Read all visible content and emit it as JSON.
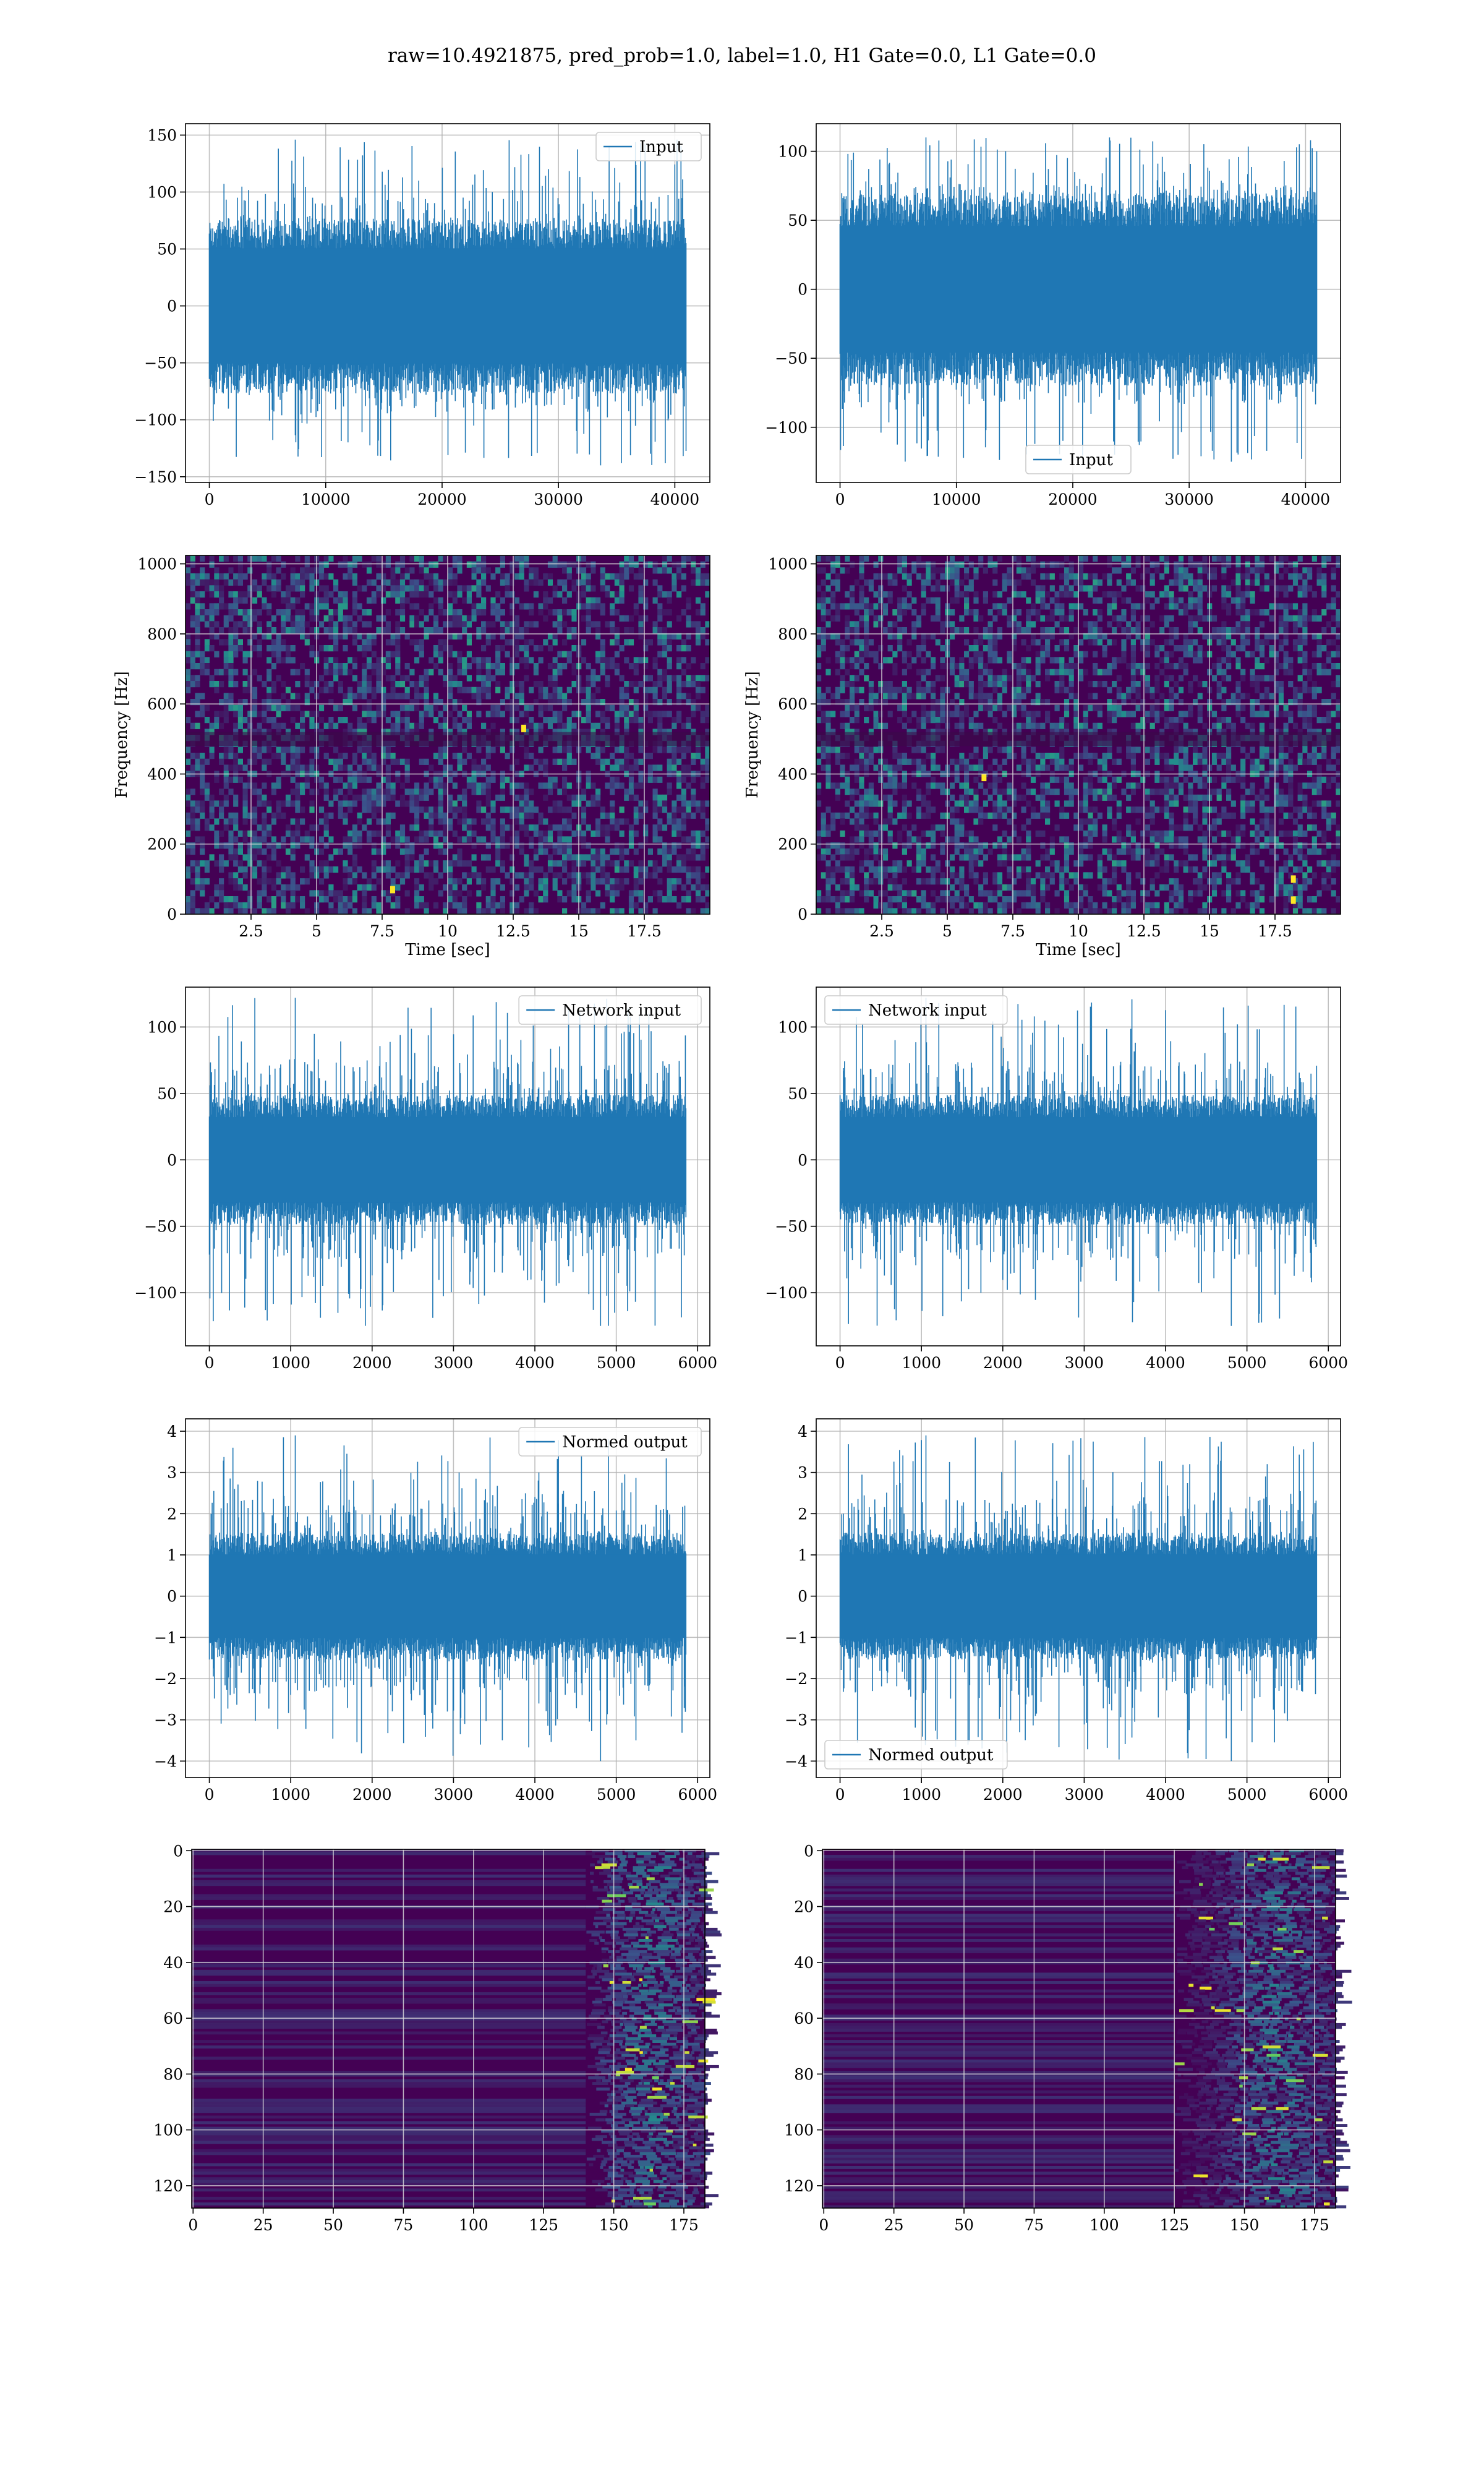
{
  "figure": {
    "suptitle": "raw=10.4921875, pred_prob=1.0, label=1.0, H1 Gate=0.0, L1 Gate=0.0"
  },
  "colors": {
    "series": "#1f77b4",
    "grid": "#b0b0b0",
    "spectrogram_background": "#440154",
    "spectrogram_mid": "#3b528b",
    "spectrogram_high": "#21918c",
    "spectrogram_peak": "#5ec962",
    "spectrogram_max": "#fde725"
  },
  "chart_data": [
    {
      "id": "input-h1",
      "type": "line",
      "legend": "Input",
      "legend_loc": "upper right",
      "xlim": [
        -2048,
        43008
      ],
      "ylim": [
        -155,
        160
      ],
      "xticks": [
        0,
        10000,
        20000,
        30000,
        40000
      ],
      "yticks": [
        -150,
        -100,
        -50,
        0,
        50,
        100,
        150
      ],
      "x_range": [
        0,
        40960
      ],
      "band": [
        -55,
        55
      ],
      "spike_max": 146,
      "spike_min": -140,
      "seed": 11
    },
    {
      "id": "input-l1",
      "type": "line",
      "legend": "Input",
      "legend_loc": "lower center",
      "xlim": [
        -2048,
        43008
      ],
      "ylim": [
        -140,
        120
      ],
      "xticks": [
        0,
        10000,
        20000,
        30000,
        40000
      ],
      "yticks": [
        -100,
        -50,
        0,
        50,
        100
      ],
      "x_range": [
        0,
        40960
      ],
      "band": [
        -50,
        50
      ],
      "spike_max": 110,
      "spike_min": -125,
      "seed": 23
    },
    {
      "id": "spectrogram-h1",
      "type": "heatmap",
      "xlabel": "Time [sec]",
      "ylabel": "Frequency [Hz]",
      "xlim": [
        0.0,
        20.0
      ],
      "ylim": [
        0,
        1024
      ],
      "xticks": [
        2.5,
        5.0,
        7.5,
        10.0,
        12.5,
        15.0,
        17.5
      ],
      "yticks": [
        0,
        200,
        400,
        600,
        800,
        1000
      ],
      "hot_spots": [
        [
          7.9,
          70
        ],
        [
          12.9,
          530
        ]
      ],
      "seed": 37
    },
    {
      "id": "spectrogram-l1",
      "type": "heatmap",
      "xlabel": "Time [sec]",
      "ylabel": "Frequency [Hz]",
      "xlim": [
        0.0,
        20.0
      ],
      "ylim": [
        0,
        1024
      ],
      "xticks": [
        2.5,
        5.0,
        7.5,
        10.0,
        12.5,
        15.0,
        17.5
      ],
      "yticks": [
        0,
        200,
        400,
        600,
        800,
        1000
      ],
      "hot_spots": [
        [
          18.2,
          40
        ],
        [
          18.2,
          100
        ],
        [
          6.4,
          390
        ]
      ],
      "seed": 41
    },
    {
      "id": "network-input-h1",
      "type": "line",
      "legend": "Network input",
      "legend_loc": "upper right",
      "xlim": [
        -293,
        6150
      ],
      "ylim": [
        -140,
        130
      ],
      "xticks": [
        0,
        1000,
        2000,
        3000,
        4000,
        5000,
        6000
      ],
      "yticks": [
        -100,
        -50,
        0,
        50,
        100
      ],
      "x_range": [
        0,
        5856
      ],
      "band": [
        -35,
        35
      ],
      "spike_max": 122,
      "spike_min": -125,
      "seed": 53
    },
    {
      "id": "network-input-l1",
      "type": "line",
      "legend": "Network input",
      "legend_loc": "upper left",
      "xlim": [
        -293,
        6150
      ],
      "ylim": [
        -140,
        130
      ],
      "xticks": [
        0,
        1000,
        2000,
        3000,
        4000,
        5000,
        6000
      ],
      "yticks": [
        -100,
        -50,
        0,
        50,
        100
      ],
      "x_range": [
        0,
        5856
      ],
      "band": [
        -35,
        35
      ],
      "spike_max": 122,
      "spike_min": -125,
      "seed": 67
    },
    {
      "id": "normed-output-h1",
      "type": "line",
      "legend": "Normed output",
      "legend_loc": "upper right",
      "xlim": [
        -293,
        6150
      ],
      "ylim": [
        -4.4,
        4.3
      ],
      "xticks": [
        0,
        1000,
        2000,
        3000,
        4000,
        5000,
        6000
      ],
      "yticks": [
        -4,
        -3,
        -2,
        -1,
        0,
        1,
        2,
        3,
        4
      ],
      "x_range": [
        0,
        5856
      ],
      "band": [
        -1.1,
        1.1
      ],
      "spike_max": 3.9,
      "spike_min": -4.0,
      "seed": 79
    },
    {
      "id": "normed-output-l1",
      "type": "line",
      "legend": "Normed output",
      "legend_loc": "lower left",
      "xlim": [
        -293,
        6150
      ],
      "ylim": [
        -4.4,
        4.3
      ],
      "xticks": [
        0,
        1000,
        2000,
        3000,
        4000,
        5000,
        6000
      ],
      "yticks": [
        -4,
        -3,
        -2,
        -1,
        0,
        1,
        2,
        3,
        4
      ],
      "x_range": [
        0,
        5856
      ],
      "band": [
        -1.1,
        1.1
      ],
      "spike_max": 3.9,
      "spike_min": -4.0,
      "seed": 83
    },
    {
      "id": "feature-map-h1",
      "type": "heatmap",
      "xlim": [
        -0.5,
        182.5
      ],
      "ylim": [
        128,
        -0.5
      ],
      "xticks": [
        0,
        25,
        50,
        75,
        100,
        125,
        150,
        175
      ],
      "yticks": [
        0,
        20,
        40,
        60,
        80,
        100,
        120
      ],
      "active_region": [
        140,
        182
      ],
      "peak_column": 162,
      "seed": 97
    },
    {
      "id": "feature-map-l1",
      "type": "heatmap",
      "xlim": [
        -0.5,
        182.5
      ],
      "ylim": [
        128,
        -0.5
      ],
      "xticks": [
        0,
        25,
        50,
        75,
        100,
        125,
        150,
        175
      ],
      "yticks": [
        0,
        20,
        40,
        60,
        80,
        100,
        120
      ],
      "active_region": [
        125,
        182
      ],
      "peak_column": 160,
      "seed": 101
    }
  ]
}
